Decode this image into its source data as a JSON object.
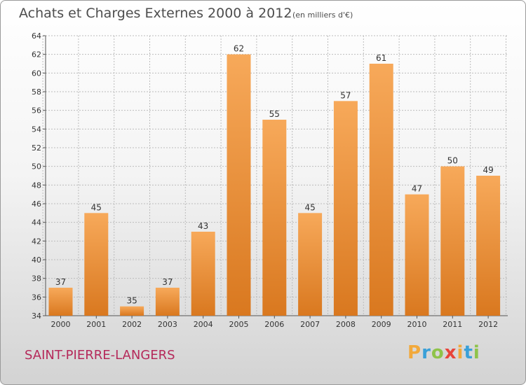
{
  "title": "Achats et Charges Externes 2000 à 2012",
  "subtitle": "(en milliers d'€)",
  "commune": "SAINT-PIERRE-LANGERS",
  "brand": {
    "letters": [
      "P",
      "r",
      "o",
      "x",
      "i",
      "t",
      "i"
    ],
    "colors": [
      "#f2a93b",
      "#3aa0d8",
      "#8fc34a",
      "#e8443a",
      "#f2a93b",
      "#3aa0d8",
      "#8fc34a"
    ]
  },
  "colors": {
    "bar_light": "#f7a95a",
    "bar_dark": "#d9781f",
    "grid": "#bcbcbc"
  },
  "chart_data": {
    "type": "bar",
    "categories": [
      "2000",
      "2001",
      "2002",
      "2003",
      "2004",
      "2005",
      "2006",
      "2007",
      "2008",
      "2009",
      "2010",
      "2011",
      "2012"
    ],
    "values": [
      37,
      45,
      35,
      37,
      43,
      62,
      55,
      45,
      57,
      61,
      47,
      50,
      49
    ],
    "yticks": [
      34,
      36,
      38,
      40,
      42,
      44,
      46,
      48,
      50,
      52,
      54,
      56,
      58,
      60,
      62,
      64
    ],
    "ylim": [
      34,
      64
    ],
    "grid": true,
    "xlabel": "",
    "ylabel": ""
  }
}
